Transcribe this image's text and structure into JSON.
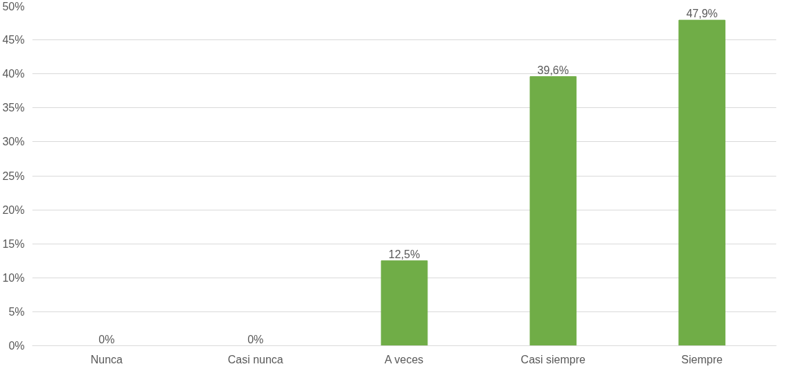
{
  "chart_data": {
    "type": "bar",
    "categories": [
      "Nunca",
      "Casi nunca",
      "A veces",
      "Casi siempre",
      "Siempre"
    ],
    "values": [
      0,
      0,
      12.5,
      39.6,
      47.9
    ],
    "value_labels": [
      "0%",
      "0%",
      "12,5%",
      "39,6%",
      "47,9%"
    ],
    "color": "#70ad47",
    "ylim": [
      0,
      50
    ],
    "yticks": [
      {
        "value": 0,
        "label": "0%"
      },
      {
        "value": 5,
        "label": "5%"
      },
      {
        "value": 10,
        "label": "10%"
      },
      {
        "value": 15,
        "label": "15%"
      },
      {
        "value": 20,
        "label": "20%"
      },
      {
        "value": 25,
        "label": "25%"
      },
      {
        "value": 30,
        "label": "30%"
      },
      {
        "value": 35,
        "label": "35%"
      },
      {
        "value": 40,
        "label": "40%"
      },
      {
        "value": 45,
        "label": "45%"
      },
      {
        "value": 50,
        "label": "50%"
      }
    ],
    "grid": "y"
  }
}
